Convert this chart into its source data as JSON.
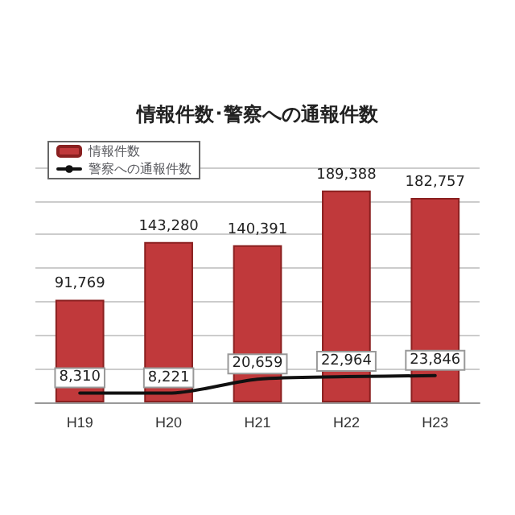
{
  "chart_data": {
    "type": "bar",
    "title": "情報件数･警察への通報件数",
    "categories": [
      "H19",
      "H20",
      "H21",
      "H22",
      "H23"
    ],
    "series": [
      {
        "name": "情報件数",
        "color": "#c0393b",
        "values": [
          91769,
          143280,
          140391,
          189388,
          182757
        ],
        "value_labels": [
          "91,769",
          "143,280",
          "140,391",
          "189,388",
          "182,757"
        ]
      },
      {
        "name": "警察への通報件数",
        "type": "line",
        "color": "#111111",
        "values": [
          8310,
          8221,
          20659,
          22964,
          23846
        ],
        "value_labels": [
          "8,310",
          "8,221",
          "20,659",
          "22,964",
          "23,846"
        ]
      }
    ],
    "grid": "y",
    "legend": "top left",
    "marker": "none",
    "line_style": "solid",
    "tick_labels": "x"
  }
}
